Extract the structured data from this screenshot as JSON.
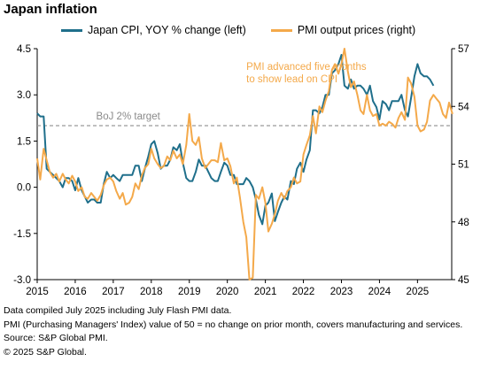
{
  "title": "Japan inflation",
  "notes": [
    "Data compiled July 2025 including July Flash PMI data.",
    "PMI (Purchasing Managers' Index) value of 50 = no change on prior month, covers manufacturing and services.",
    "Source: S&P Global PMI.",
    "© 2025 S&P Global."
  ],
  "colors": {
    "cpi": "#1f6f8b",
    "pmi": "#f4a94a",
    "target": "#9a9a9a",
    "annotation": "#f4a94a"
  },
  "chart_data": {
    "type": "line",
    "xlim": [
      2015,
      2025.9
    ],
    "x_ticks": [
      "2015",
      "2016",
      "2017",
      "2018",
      "2019",
      "2020",
      "2021",
      "2022",
      "2023",
      "2024",
      "2025"
    ],
    "left_axis": {
      "ticks": [
        "4.5",
        "3.0",
        "1.5",
        "0.0",
        "-1.5",
        "-3.0"
      ],
      "ylim": [
        -3.0,
        4.5
      ]
    },
    "right_axis": {
      "ticks": [
        "57",
        "54",
        "51",
        "48",
        "45"
      ],
      "ylim": [
        45,
        57
      ]
    },
    "reference_line": {
      "value": 2.0,
      "axis": "left",
      "label": "BoJ 2% target"
    },
    "annotation": [
      "PMI advanced five months",
      "to show lead on CPI"
    ],
    "series": [
      {
        "name": "Japan CPI, YOY % change (left)",
        "axis": "left",
        "values": [
          [
            2015.0,
            2.4
          ],
          [
            2015.08,
            2.3
          ],
          [
            2015.17,
            2.3
          ],
          [
            2015.25,
            0.6
          ],
          [
            2015.33,
            0.5
          ],
          [
            2015.42,
            0.4
          ],
          [
            2015.5,
            0.3
          ],
          [
            2015.58,
            0.2
          ],
          [
            2015.67,
            0.0
          ],
          [
            2015.75,
            0.3
          ],
          [
            2015.83,
            0.3
          ],
          [
            2015.92,
            0.2
          ],
          [
            2016.0,
            -0.1
          ],
          [
            2016.08,
            0.3
          ],
          [
            2016.17,
            -0.1
          ],
          [
            2016.25,
            -0.3
          ],
          [
            2016.33,
            -0.5
          ],
          [
            2016.42,
            -0.4
          ],
          [
            2016.5,
            -0.4
          ],
          [
            2016.58,
            -0.5
          ],
          [
            2016.67,
            -0.5
          ],
          [
            2016.75,
            0.1
          ],
          [
            2016.83,
            0.5
          ],
          [
            2016.92,
            0.3
          ],
          [
            2017.0,
            0.4
          ],
          [
            2017.08,
            0.3
          ],
          [
            2017.17,
            0.2
          ],
          [
            2017.25,
            0.4
          ],
          [
            2017.33,
            0.4
          ],
          [
            2017.42,
            0.4
          ],
          [
            2017.5,
            0.4
          ],
          [
            2017.58,
            0.7
          ],
          [
            2017.67,
            0.7
          ],
          [
            2017.75,
            0.2
          ],
          [
            2017.83,
            0.6
          ],
          [
            2017.92,
            1.0
          ],
          [
            2018.0,
            1.4
          ],
          [
            2018.08,
            1.5
          ],
          [
            2018.17,
            1.1
          ],
          [
            2018.25,
            0.6
          ],
          [
            2018.33,
            0.7
          ],
          [
            2018.42,
            0.7
          ],
          [
            2018.5,
            0.9
          ],
          [
            2018.58,
            1.3
          ],
          [
            2018.67,
            1.2
          ],
          [
            2018.75,
            1.4
          ],
          [
            2018.83,
            0.8
          ],
          [
            2018.92,
            0.3
          ],
          [
            2019.0,
            0.2
          ],
          [
            2019.08,
            0.2
          ],
          [
            2019.17,
            0.5
          ],
          [
            2019.25,
            0.9
          ],
          [
            2019.33,
            0.7
          ],
          [
            2019.42,
            0.7
          ],
          [
            2019.5,
            0.5
          ],
          [
            2019.58,
            0.3
          ],
          [
            2019.67,
            0.2
          ],
          [
            2019.75,
            0.2
          ],
          [
            2019.83,
            0.5
          ],
          [
            2019.92,
            0.8
          ],
          [
            2020.0,
            0.7
          ],
          [
            2020.08,
            0.4
          ],
          [
            2020.17,
            0.4
          ],
          [
            2020.25,
            0.1
          ],
          [
            2020.33,
            0.1
          ],
          [
            2020.42,
            0.1
          ],
          [
            2020.5,
            0.3
          ],
          [
            2020.58,
            0.2
          ],
          [
            2020.67,
            0.0
          ],
          [
            2020.75,
            -0.4
          ],
          [
            2020.83,
            -0.9
          ],
          [
            2020.92,
            -1.2
          ],
          [
            2021.0,
            -0.6
          ],
          [
            2021.08,
            -0.5
          ],
          [
            2021.17,
            -0.2
          ],
          [
            2021.25,
            -1.1
          ],
          [
            2021.33,
            -0.8
          ],
          [
            2021.42,
            -0.5
          ],
          [
            2021.5,
            -0.3
          ],
          [
            2021.58,
            -0.4
          ],
          [
            2021.67,
            0.2
          ],
          [
            2021.75,
            0.1
          ],
          [
            2021.83,
            0.6
          ],
          [
            2021.92,
            0.8
          ],
          [
            2022.0,
            0.5
          ],
          [
            2022.08,
            0.9
          ],
          [
            2022.17,
            1.2
          ],
          [
            2022.25,
            2.5
          ],
          [
            2022.33,
            2.5
          ],
          [
            2022.42,
            2.4
          ],
          [
            2022.5,
            2.6
          ],
          [
            2022.58,
            3.0
          ],
          [
            2022.67,
            3.0
          ],
          [
            2022.75,
            3.7
          ],
          [
            2022.83,
            3.8
          ],
          [
            2022.92,
            4.0
          ],
          [
            2023.0,
            4.3
          ],
          [
            2023.08,
            3.3
          ],
          [
            2023.17,
            3.2
          ],
          [
            2023.25,
            3.5
          ],
          [
            2023.33,
            3.2
          ],
          [
            2023.42,
            3.3
          ],
          [
            2023.5,
            3.3
          ],
          [
            2023.58,
            3.2
          ],
          [
            2023.67,
            3.0
          ],
          [
            2023.75,
            3.3
          ],
          [
            2023.83,
            2.8
          ],
          [
            2023.92,
            2.6
          ],
          [
            2024.0,
            2.2
          ],
          [
            2024.08,
            2.8
          ],
          [
            2024.17,
            2.7
          ],
          [
            2024.25,
            2.5
          ],
          [
            2024.33,
            2.8
          ],
          [
            2024.42,
            2.8
          ],
          [
            2024.5,
            2.8
          ],
          [
            2024.58,
            3.0
          ],
          [
            2024.67,
            2.5
          ],
          [
            2024.75,
            2.3
          ],
          [
            2024.83,
            2.9
          ],
          [
            2024.92,
            3.6
          ],
          [
            2025.0,
            4.0
          ],
          [
            2025.08,
            3.7
          ],
          [
            2025.17,
            3.6
          ],
          [
            2025.25,
            3.6
          ],
          [
            2025.33,
            3.5
          ],
          [
            2025.42,
            3.3
          ]
        ]
      },
      {
        "name": "PMI output prices (right)",
        "axis": "right",
        "values": [
          [
            2015.0,
            51.3
          ],
          [
            2015.08,
            50.2
          ],
          [
            2015.17,
            51.8
          ],
          [
            2015.25,
            51.2
          ],
          [
            2015.33,
            50.6
          ],
          [
            2015.42,
            50.3
          ],
          [
            2015.5,
            50.5
          ],
          [
            2015.58,
            50.1
          ],
          [
            2015.67,
            50.5
          ],
          [
            2015.75,
            50.2
          ],
          [
            2015.83,
            50.0
          ],
          [
            2015.92,
            50.4
          ],
          [
            2016.0,
            50.1
          ],
          [
            2016.08,
            49.6
          ],
          [
            2016.17,
            49.8
          ],
          [
            2016.25,
            49.3
          ],
          [
            2016.33,
            49.2
          ],
          [
            2016.42,
            49.5
          ],
          [
            2016.5,
            49.3
          ],
          [
            2016.58,
            49.1
          ],
          [
            2016.67,
            49.4
          ],
          [
            2016.75,
            49.9
          ],
          [
            2016.83,
            50.2
          ],
          [
            2016.92,
            50.3
          ],
          [
            2017.0,
            50.1
          ],
          [
            2017.08,
            49.6
          ],
          [
            2017.17,
            49.2
          ],
          [
            2017.25,
            49.5
          ],
          [
            2017.33,
            48.9
          ],
          [
            2017.42,
            49.0
          ],
          [
            2017.5,
            49.3
          ],
          [
            2017.58,
            50.0
          ],
          [
            2017.67,
            49.7
          ],
          [
            2017.75,
            50.4
          ],
          [
            2017.83,
            50.8
          ],
          [
            2017.92,
            51.0
          ],
          [
            2018.0,
            51.8
          ],
          [
            2018.08,
            51.3
          ],
          [
            2018.17,
            51.0
          ],
          [
            2018.25,
            50.8
          ],
          [
            2018.33,
            50.9
          ],
          [
            2018.42,
            51.4
          ],
          [
            2018.5,
            51.2
          ],
          [
            2018.58,
            51.7
          ],
          [
            2018.67,
            51.3
          ],
          [
            2018.75,
            51.5
          ],
          [
            2018.83,
            51.0
          ],
          [
            2018.92,
            52.0
          ],
          [
            2019.0,
            53.6
          ],
          [
            2019.08,
            52.2
          ],
          [
            2019.17,
            52.0
          ],
          [
            2019.25,
            52.4
          ],
          [
            2019.33,
            51.3
          ],
          [
            2019.42,
            50.8
          ],
          [
            2019.5,
            51.0
          ],
          [
            2019.58,
            51.2
          ],
          [
            2019.67,
            51.2
          ],
          [
            2019.75,
            51.1
          ],
          [
            2019.83,
            52.1
          ],
          [
            2019.92,
            51.2
          ],
          [
            2020.0,
            51.3
          ],
          [
            2020.08,
            50.9
          ],
          [
            2020.17,
            50.0
          ],
          [
            2020.25,
            50.3
          ],
          [
            2020.33,
            49.3
          ],
          [
            2020.42,
            48.0
          ],
          [
            2020.5,
            47.2
          ],
          [
            2020.58,
            45.0
          ],
          [
            2020.67,
            45.1
          ],
          [
            2020.75,
            49.4
          ],
          [
            2020.83,
            49.2
          ],
          [
            2020.92,
            49.8
          ],
          [
            2021.0,
            49.0
          ],
          [
            2021.08,
            47.5
          ],
          [
            2021.17,
            47.9
          ],
          [
            2021.25,
            48.4
          ],
          [
            2021.33,
            49.1
          ],
          [
            2021.42,
            49.5
          ],
          [
            2021.5,
            49.2
          ],
          [
            2021.58,
            49.6
          ],
          [
            2021.67,
            49.8
          ],
          [
            2021.75,
            50.3
          ],
          [
            2021.83,
            50.0
          ],
          [
            2021.92,
            50.1
          ],
          [
            2022.0,
            51.5
          ],
          [
            2022.08,
            52.0
          ],
          [
            2022.17,
            52.5
          ],
          [
            2022.25,
            53.5
          ],
          [
            2022.33,
            52.6
          ],
          [
            2022.42,
            54.0
          ],
          [
            2022.5,
            53.7
          ],
          [
            2022.58,
            54.3
          ],
          [
            2022.67,
            54.8
          ],
          [
            2022.75,
            55.9
          ],
          [
            2022.83,
            56.2
          ],
          [
            2022.92,
            55.7
          ],
          [
            2023.0,
            56.2
          ],
          [
            2023.08,
            57.0
          ],
          [
            2023.17,
            55.8
          ],
          [
            2023.25,
            55.0
          ],
          [
            2023.33,
            55.3
          ],
          [
            2023.42,
            54.6
          ],
          [
            2023.5,
            53.8
          ],
          [
            2023.58,
            53.6
          ],
          [
            2023.67,
            54.6
          ],
          [
            2023.75,
            53.8
          ],
          [
            2023.83,
            53.5
          ],
          [
            2023.92,
            53.6
          ],
          [
            2024.0,
            53.0
          ],
          [
            2024.08,
            53.1
          ],
          [
            2024.17,
            53.0
          ],
          [
            2024.25,
            53.2
          ],
          [
            2024.33,
            53.1
          ],
          [
            2024.42,
            52.9
          ],
          [
            2024.5,
            53.4
          ],
          [
            2024.58,
            53.7
          ],
          [
            2024.67,
            53.3
          ],
          [
            2024.75,
            55.5
          ],
          [
            2024.83,
            55.2
          ],
          [
            2024.92,
            54.5
          ],
          [
            2025.0,
            53.0
          ],
          [
            2025.08,
            52.7
          ],
          [
            2025.17,
            52.8
          ],
          [
            2025.25,
            53.2
          ],
          [
            2025.33,
            54.3
          ],
          [
            2025.42,
            54.6
          ],
          [
            2025.5,
            54.4
          ],
          [
            2025.58,
            54.2
          ],
          [
            2025.67,
            53.6
          ],
          [
            2025.75,
            53.4
          ],
          [
            2025.83,
            54.2
          ],
          [
            2025.92,
            53.6
          ]
        ]
      }
    ]
  }
}
